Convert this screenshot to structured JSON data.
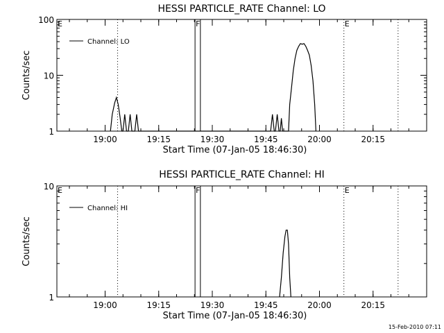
{
  "chart_data": [
    {
      "type": "line",
      "title": "HESSI PARTICLE_RATE Channel: LO",
      "xlabel": "Start Time (07-Jan-05 18:46:30)",
      "ylabel": "Counts/sec",
      "yscale": "log",
      "ylim": [
        1,
        100
      ],
      "yticks": [
        {
          "v": 1,
          "label": "1"
        },
        {
          "v": 10,
          "label": "10"
        },
        {
          "v": 100,
          "label": "100"
        }
      ],
      "xlim": [
        "18:46:30",
        "20:30:00"
      ],
      "xticks": [
        "19:00",
        "19:15",
        "19:30",
        "19:45",
        "20:00",
        "20:15"
      ],
      "legend": {
        "position": "top-left",
        "entries": [
          "Channel: LO"
        ]
      },
      "flags": [
        {
          "label": "E",
          "time": "18:46:30",
          "style": "none"
        },
        {
          "label": "",
          "time": "19:03:30",
          "style": "dotted"
        },
        {
          "label": "F",
          "time": "19:25:10",
          "style": "solid"
        },
        {
          "label": "",
          "time": "19:26:40",
          "style": "solid"
        },
        {
          "label": "E",
          "time": "20:06:50",
          "style": "dotted"
        },
        {
          "label": "",
          "time": "20:22:00",
          "style": "dotted"
        }
      ],
      "series": [
        {
          "name": "Channel: LO",
          "points": [
            [
              "19:01:30",
              1
            ],
            [
              "19:02:00",
              2
            ],
            [
              "19:02:40",
              3.2
            ],
            [
              "19:03:10",
              4
            ],
            [
              "19:03:40",
              3
            ],
            [
              "19:04:10",
              1.8
            ],
            [
              "19:04:40",
              1
            ],
            [
              "19:05:00",
              1
            ],
            [
              "19:05:30",
              2
            ],
            [
              "19:06:00",
              1
            ],
            [
              "19:06:30",
              1
            ],
            [
              "19:07:00",
              2
            ],
            [
              "19:07:30",
              1
            ],
            [
              "19:08:20",
              1
            ],
            [
              "19:08:50",
              2
            ],
            [
              "19:09:20",
              1
            ],
            [
              "19:46:20",
              1
            ],
            [
              "19:46:50",
              2
            ],
            [
              "19:47:20",
              1
            ],
            [
              "19:47:40",
              1
            ],
            [
              "19:48:10",
              2
            ],
            [
              "19:48:40",
              1
            ],
            [
              "19:49:00",
              1
            ],
            [
              "19:49:20",
              1.7
            ],
            [
              "19:49:40",
              1
            ],
            [
              "19:51:20",
              1
            ],
            [
              "19:51:40",
              3
            ],
            [
              "19:52:10",
              6
            ],
            [
              "19:52:40",
              12
            ],
            [
              "19:53:10",
              20
            ],
            [
              "19:53:40",
              28
            ],
            [
              "19:54:10",
              33
            ],
            [
              "19:54:40",
              37
            ],
            [
              "19:55:10",
              36
            ],
            [
              "19:55:40",
              37
            ],
            [
              "19:56:10",
              33
            ],
            [
              "19:56:40",
              28
            ],
            [
              "19:57:10",
              23
            ],
            [
              "19:57:40",
              15
            ],
            [
              "19:58:10",
              8
            ],
            [
              "19:58:40",
              3
            ],
            [
              "19:59:00",
              1
            ]
          ]
        }
      ],
      "timestamp": ""
    },
    {
      "type": "line",
      "title": "HESSI PARTICLE_RATE Channel: HI",
      "xlabel": "Start Time (07-Jan-05 18:46:30)",
      "ylabel": "Counts/sec",
      "yscale": "log",
      "ylim": [
        1,
        10
      ],
      "yticks": [
        {
          "v": 1,
          "label": "1"
        },
        {
          "v": 10,
          "label": "10"
        }
      ],
      "xlim": [
        "18:46:30",
        "20:30:00"
      ],
      "xticks": [
        "19:00",
        "19:15",
        "19:30",
        "19:45",
        "20:00",
        "20:15"
      ],
      "legend": {
        "position": "top-left",
        "entries": [
          "Channel: HI"
        ]
      },
      "flags": [
        {
          "label": "E",
          "time": "18:46:30",
          "style": "none"
        },
        {
          "label": "",
          "time": "19:03:30",
          "style": "dotted"
        },
        {
          "label": "F",
          "time": "19:25:10",
          "style": "solid"
        },
        {
          "label": "",
          "time": "19:26:40",
          "style": "solid"
        },
        {
          "label": "E",
          "time": "20:06:50",
          "style": "dotted"
        },
        {
          "label": "",
          "time": "20:22:00",
          "style": "dotted"
        }
      ],
      "series": [
        {
          "name": "Channel: HI",
          "points": [
            [
              "19:48:50",
              1
            ],
            [
              "19:49:20",
              1.5
            ],
            [
              "19:49:50",
              2.5
            ],
            [
              "19:50:20",
              3.5
            ],
            [
              "19:50:40",
              4
            ],
            [
              "19:51:00",
              4
            ],
            [
              "19:51:20",
              3
            ],
            [
              "19:51:40",
              1.5
            ],
            [
              "19:52:00",
              1
            ]
          ]
        }
      ],
      "timestamp": "15-Feb-2010 07:11"
    }
  ]
}
